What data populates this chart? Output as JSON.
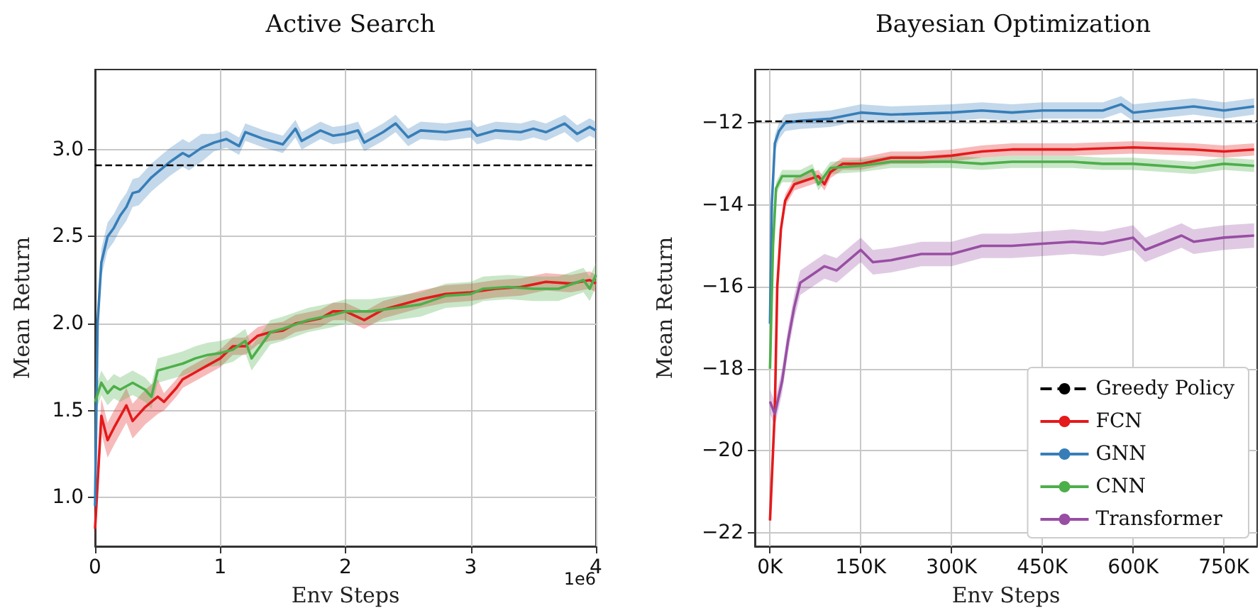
{
  "chart_data": [
    {
      "type": "line",
      "title": "Active Search",
      "xlabel": "Env Steps",
      "ylabel": "Mean Return",
      "xlim": [
        0,
        4
      ],
      "ylim": [
        0.72,
        3.46
      ],
      "xticks": [
        0,
        1,
        2,
        3,
        4
      ],
      "yticks": [
        {
          "value": 1,
          "label": "1.0"
        },
        {
          "value": 1.5,
          "label": "1.5"
        },
        {
          "value": 2,
          "label": "2.0"
        },
        {
          "value": 2.5,
          "label": "2.5"
        },
        {
          "value": 3,
          "label": "3.0"
        }
      ],
      "grid": true,
      "annotations": [
        "1e6"
      ],
      "ref_lines": [
        {
          "axis": "y",
          "value": 2.91,
          "label": null,
          "color": "#000000",
          "line_style": "dashed"
        }
      ],
      "series": [
        {
          "color": "#e41a1c",
          "x": [
            0,
            0.05,
            0.1,
            0.15,
            0.25,
            0.3,
            0.4,
            0.5,
            0.55,
            0.65,
            0.7,
            0.8,
            0.9,
            1.0,
            1.1,
            1.2,
            1.3,
            1.4,
            1.5,
            1.6,
            1.8,
            1.9,
            2.0,
            2.15,
            2.3,
            2.5,
            2.6,
            2.8,
            3.0,
            3.2,
            3.4,
            3.6,
            3.8,
            3.95,
            4.0
          ],
          "values": [
            0.82,
            1.47,
            1.33,
            1.4,
            1.53,
            1.44,
            1.52,
            1.58,
            1.55,
            1.63,
            1.68,
            1.72,
            1.76,
            1.8,
            1.87,
            1.87,
            1.93,
            1.95,
            1.96,
            2.0,
            2.03,
            2.07,
            2.07,
            2.02,
            2.08,
            2.12,
            2.14,
            2.17,
            2.18,
            2.2,
            2.21,
            2.24,
            2.23,
            2.25,
            2.23
          ],
          "lower": [
            0.72,
            1.37,
            1.23,
            1.3,
            1.43,
            1.34,
            1.42,
            1.48,
            1.5,
            1.58,
            1.63,
            1.67,
            1.71,
            1.75,
            1.82,
            1.82,
            1.88,
            1.9,
            1.91,
            1.95,
            1.98,
            2.02,
            2.02,
            1.97,
            2.03,
            2.07,
            2.09,
            2.12,
            2.13,
            2.15,
            2.16,
            2.19,
            2.18,
            2.2,
            2.18
          ],
          "upper": [
            0.92,
            1.57,
            1.43,
            1.5,
            1.63,
            1.54,
            1.62,
            1.68,
            1.6,
            1.68,
            1.73,
            1.77,
            1.81,
            1.85,
            1.92,
            1.92,
            1.98,
            2.0,
            2.01,
            2.05,
            2.08,
            2.12,
            2.12,
            2.07,
            2.13,
            2.17,
            2.19,
            2.22,
            2.23,
            2.25,
            2.26,
            2.29,
            2.28,
            2.3,
            2.28
          ]
        },
        {
          "color": "#377eb8",
          "x": [
            0,
            0.02,
            0.05,
            0.1,
            0.15,
            0.2,
            0.25,
            0.3,
            0.35,
            0.4,
            0.45,
            0.5,
            0.6,
            0.7,
            0.75,
            0.85,
            0.95,
            1.05,
            1.15,
            1.2,
            1.35,
            1.5,
            1.6,
            1.65,
            1.8,
            1.9,
            2.0,
            2.1,
            2.15,
            2.3,
            2.4,
            2.5,
            2.6,
            2.8,
            3.0,
            3.05,
            3.2,
            3.4,
            3.5,
            3.6,
            3.75,
            3.85,
            3.95,
            4.0
          ],
          "values": [
            0.95,
            2.0,
            2.35,
            2.5,
            2.55,
            2.62,
            2.67,
            2.75,
            2.76,
            2.8,
            2.84,
            2.87,
            2.93,
            2.98,
            2.96,
            3.01,
            3.04,
            3.06,
            3.02,
            3.1,
            3.06,
            3.03,
            3.12,
            3.05,
            3.11,
            3.08,
            3.09,
            3.11,
            3.04,
            3.1,
            3.15,
            3.07,
            3.11,
            3.1,
            3.12,
            3.08,
            3.11,
            3.1,
            3.12,
            3.1,
            3.15,
            3.09,
            3.13,
            3.11
          ],
          "lower": [
            0.87,
            1.92,
            2.27,
            2.42,
            2.47,
            2.54,
            2.59,
            2.67,
            2.68,
            2.72,
            2.76,
            2.79,
            2.85,
            2.9,
            2.88,
            2.93,
            2.99,
            3.01,
            2.97,
            3.05,
            3.01,
            2.98,
            3.07,
            3.0,
            3.06,
            3.03,
            3.04,
            3.06,
            2.99,
            3.05,
            3.1,
            3.02,
            3.06,
            3.05,
            3.07,
            3.03,
            3.06,
            3.05,
            3.07,
            3.05,
            3.1,
            3.04,
            3.08,
            3.06
          ],
          "upper": [
            1.03,
            2.08,
            2.43,
            2.58,
            2.63,
            2.7,
            2.75,
            2.83,
            2.84,
            2.88,
            2.92,
            2.95,
            3.01,
            3.06,
            3.04,
            3.09,
            3.09,
            3.11,
            3.07,
            3.15,
            3.11,
            3.08,
            3.17,
            3.1,
            3.16,
            3.13,
            3.14,
            3.16,
            3.09,
            3.15,
            3.2,
            3.12,
            3.16,
            3.15,
            3.17,
            3.13,
            3.16,
            3.15,
            3.17,
            3.15,
            3.2,
            3.14,
            3.18,
            3.16
          ]
        },
        {
          "color": "#4daf4a",
          "x": [
            0,
            0.05,
            0.1,
            0.15,
            0.2,
            0.3,
            0.4,
            0.45,
            0.5,
            0.6,
            0.7,
            0.8,
            0.9,
            1.0,
            1.1,
            1.2,
            1.25,
            1.4,
            1.5,
            1.7,
            1.9,
            2.0,
            2.2,
            2.4,
            2.6,
            2.8,
            3.0,
            3.1,
            3.3,
            3.5,
            3.7,
            3.9,
            3.95,
            4.0
          ],
          "values": [
            1.55,
            1.66,
            1.6,
            1.64,
            1.62,
            1.66,
            1.62,
            1.58,
            1.73,
            1.75,
            1.77,
            1.8,
            1.82,
            1.83,
            1.85,
            1.9,
            1.8,
            1.95,
            1.97,
            2.02,
            2.05,
            2.07,
            2.07,
            2.09,
            2.11,
            2.16,
            2.17,
            2.2,
            2.21,
            2.2,
            2.2,
            2.25,
            2.2,
            2.28
          ],
          "lower": [
            1.48,
            1.59,
            1.53,
            1.57,
            1.55,
            1.59,
            1.55,
            1.51,
            1.66,
            1.68,
            1.7,
            1.73,
            1.75,
            1.76,
            1.78,
            1.83,
            1.73,
            1.88,
            1.9,
            1.95,
            1.98,
            2.0,
            2.0,
            2.02,
            2.04,
            2.09,
            2.1,
            2.13,
            2.14,
            2.13,
            2.13,
            2.18,
            2.13,
            2.21
          ],
          "upper": [
            1.62,
            1.73,
            1.67,
            1.71,
            1.69,
            1.73,
            1.69,
            1.65,
            1.8,
            1.82,
            1.84,
            1.87,
            1.89,
            1.9,
            1.92,
            1.97,
            1.87,
            2.02,
            2.04,
            2.09,
            2.12,
            2.14,
            2.14,
            2.16,
            2.18,
            2.23,
            2.24,
            2.27,
            2.28,
            2.27,
            2.27,
            2.32,
            2.27,
            2.35
          ]
        }
      ]
    },
    {
      "type": "line",
      "title": "Bayesian Optimization",
      "xlabel": "Env Steps",
      "ylabel": "Mean Return",
      "xlim": [
        -25000,
        805000
      ],
      "ylim": [
        -22.33,
        -10.7
      ],
      "xticks": [
        {
          "value": 0,
          "label": "0K"
        },
        {
          "value": 150000,
          "label": "150K"
        },
        {
          "value": 300000,
          "label": "300K"
        },
        {
          "value": 450000,
          "label": "450K"
        },
        {
          "value": 600000,
          "label": "600K"
        },
        {
          "value": 750000,
          "label": "750K"
        }
      ],
      "yticks": [
        {
          "value": -22,
          "label": "−22"
        },
        {
          "value": -20,
          "label": "−20"
        },
        {
          "value": -18,
          "label": "−18"
        },
        {
          "value": -16,
          "label": "−16"
        },
        {
          "value": -14,
          "label": "−14"
        },
        {
          "value": -12,
          "label": "−12"
        }
      ],
      "grid": true,
      "legend": "bottom right",
      "ref_lines": [
        {
          "axis": "y",
          "value": -11.95,
          "label": "Greedy Policy",
          "color": "#000000",
          "line_style": "dashed"
        }
      ],
      "series": [
        {
          "name": "FCN",
          "color": "#e41a1c",
          "x": [
            0,
            8000,
            12000,
            18000,
            25000,
            40000,
            60000,
            80000,
            90000,
            100000,
            120000,
            150000,
            200000,
            250000,
            300000,
            350000,
            400000,
            450000,
            500000,
            600000,
            700000,
            750000,
            800000
          ],
          "values": [
            -21.7,
            -19,
            -16,
            -14.6,
            -13.9,
            -13.5,
            -13.4,
            -13.3,
            -13.5,
            -13.2,
            -13.0,
            -13.0,
            -12.85,
            -12.85,
            -12.8,
            -12.7,
            -12.65,
            -12.65,
            -12.65,
            -12.6,
            -12.65,
            -12.7,
            -12.65
          ],
          "lower": [
            -21.85,
            -19.15,
            -16.15,
            -14.75,
            -14.05,
            -13.65,
            -13.55,
            -13.45,
            -13.65,
            -13.35,
            -13.15,
            -13.15,
            -13.0,
            -13.0,
            -12.95,
            -12.85,
            -12.8,
            -12.8,
            -12.8,
            -12.75,
            -12.8,
            -12.85,
            -12.8
          ],
          "upper": [
            -21.55,
            -18.85,
            -15.85,
            -14.45,
            -13.75,
            -13.35,
            -13.25,
            -13.15,
            -13.35,
            -13.05,
            -12.85,
            -12.85,
            -12.7,
            -12.7,
            -12.65,
            -12.55,
            -12.5,
            -12.5,
            -12.5,
            -12.45,
            -12.5,
            -12.55,
            -12.5
          ]
        },
        {
          "name": "GNN",
          "color": "#377eb8",
          "x": [
            0,
            3000,
            8000,
            15000,
            25000,
            50000,
            100000,
            150000,
            200000,
            300000,
            350000,
            400000,
            450000,
            500000,
            550000,
            580000,
            600000,
            700000,
            750000,
            800000
          ],
          "values": [
            -16.9,
            -14,
            -12.5,
            -12.2,
            -12.0,
            -11.95,
            -11.9,
            -11.75,
            -11.8,
            -11.75,
            -11.7,
            -11.75,
            -11.7,
            -11.7,
            -11.7,
            -11.55,
            -11.75,
            -11.6,
            -11.7,
            -11.6
          ],
          "lower": [
            -17.1,
            -14.2,
            -12.7,
            -12.4,
            -12.2,
            -12.15,
            -12.1,
            -11.95,
            -12.0,
            -11.95,
            -11.9,
            -11.95,
            -11.9,
            -11.9,
            -11.9,
            -11.75,
            -11.95,
            -11.8,
            -11.9,
            -11.8
          ],
          "upper": [
            -16.7,
            -13.8,
            -12.3,
            -12.0,
            -11.8,
            -11.75,
            -11.7,
            -11.55,
            -11.6,
            -11.55,
            -11.5,
            -11.55,
            -11.5,
            -11.5,
            -11.5,
            -11.35,
            -11.55,
            -11.4,
            -11.5,
            -11.4
          ]
        },
        {
          "name": "CNN",
          "color": "#4daf4a",
          "x": [
            0,
            5000,
            10000,
            20000,
            50000,
            70000,
            80000,
            100000,
            150000,
            200000,
            250000,
            300000,
            350000,
            400000,
            450000,
            500000,
            550000,
            600000,
            700000,
            750000,
            800000
          ],
          "values": [
            -18,
            -15,
            -13.6,
            -13.3,
            -13.3,
            -13.15,
            -13.5,
            -13.1,
            -13.05,
            -12.95,
            -12.95,
            -12.95,
            -13.0,
            -12.95,
            -12.95,
            -12.95,
            -13.0,
            -13.0,
            -13.1,
            -13.0,
            -13.05
          ],
          "lower": [
            -18.15,
            -15.15,
            -13.75,
            -13.45,
            -13.45,
            -13.3,
            -13.65,
            -13.25,
            -13.2,
            -13.1,
            -13.1,
            -13.1,
            -13.15,
            -13.1,
            -13.1,
            -13.1,
            -13.15,
            -13.15,
            -13.25,
            -13.15,
            -13.2
          ],
          "upper": [
            -17.85,
            -14.85,
            -13.45,
            -13.15,
            -13.15,
            -13.0,
            -13.35,
            -12.95,
            -12.9,
            -12.8,
            -12.8,
            -12.8,
            -12.85,
            -12.8,
            -12.8,
            -12.8,
            -12.85,
            -12.85,
            -12.95,
            -12.85,
            -12.9
          ]
        },
        {
          "name": "Transformer",
          "color": "#984ea3",
          "x": [
            0,
            8000,
            20000,
            30000,
            40000,
            50000,
            70000,
            90000,
            110000,
            130000,
            150000,
            170000,
            200000,
            250000,
            300000,
            350000,
            400000,
            450000,
            500000,
            550000,
            600000,
            620000,
            680000,
            700000,
            750000,
            800000
          ],
          "values": [
            -18.8,
            -19.1,
            -18.3,
            -17.3,
            -16.5,
            -15.9,
            -15.7,
            -15.5,
            -15.6,
            -15.35,
            -15.1,
            -15.4,
            -15.35,
            -15.2,
            -15.2,
            -15.0,
            -15.0,
            -14.95,
            -14.9,
            -14.95,
            -14.8,
            -15.1,
            -14.75,
            -14.9,
            -14.8,
            -14.75
          ],
          "lower": [
            -19.1,
            -19.4,
            -18.6,
            -17.6,
            -16.8,
            -16.2,
            -16.0,
            -15.8,
            -15.9,
            -15.65,
            -15.4,
            -15.7,
            -15.65,
            -15.5,
            -15.5,
            -15.3,
            -15.3,
            -15.25,
            -15.2,
            -15.25,
            -15.1,
            -15.4,
            -15.05,
            -15.2,
            -15.1,
            -15.05
          ],
          "upper": [
            -18.5,
            -18.8,
            -18.0,
            -17.0,
            -16.2,
            -15.6,
            -15.4,
            -15.2,
            -15.3,
            -15.05,
            -14.8,
            -15.1,
            -15.05,
            -14.9,
            -14.9,
            -14.7,
            -14.7,
            -14.65,
            -14.6,
            -14.65,
            -14.5,
            -14.8,
            -14.45,
            -14.6,
            -14.5,
            -14.45
          ]
        }
      ]
    }
  ]
}
